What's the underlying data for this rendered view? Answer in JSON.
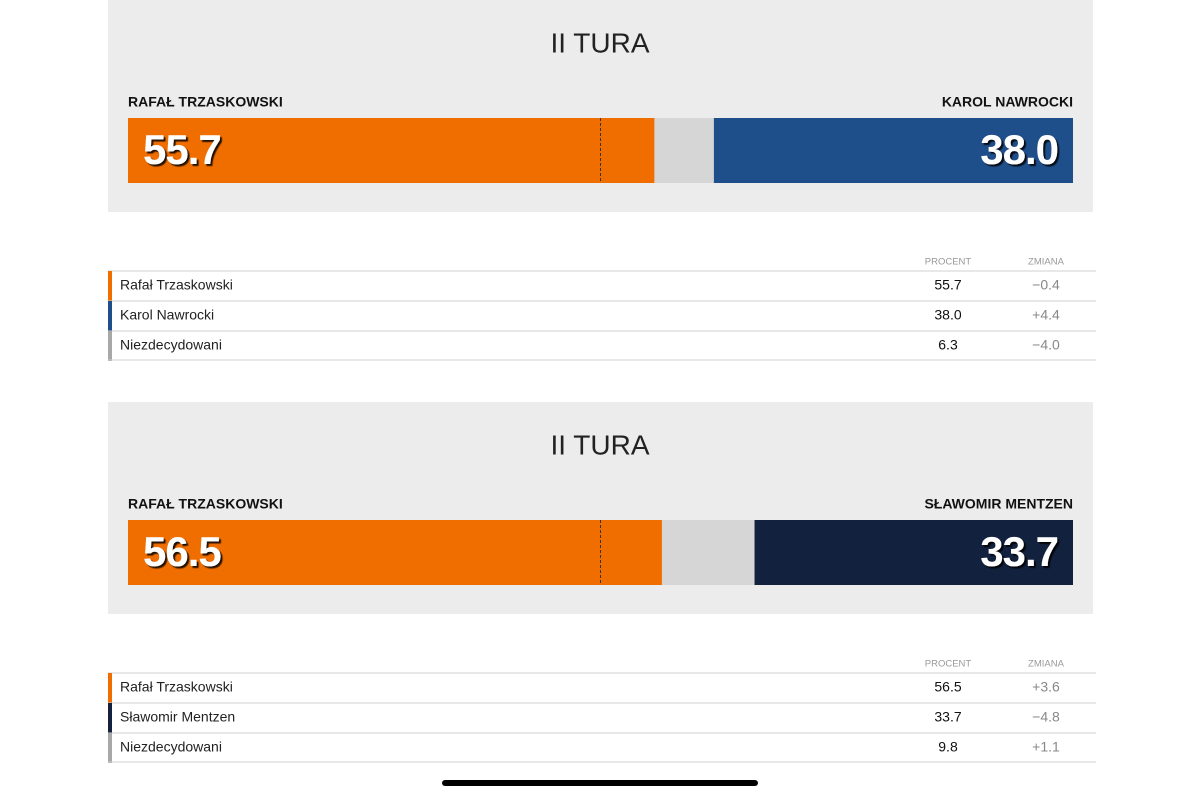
{
  "chart_data": [
    {
      "type": "split-bar",
      "title": "II TURA",
      "xlim": [
        0,
        100
      ],
      "reference_line": 50,
      "series": [
        {
          "name": "RAFAŁ TRZASKOWSKI",
          "color": "#f06e00",
          "values": [
            55.7
          ],
          "value_labels": [
            "55.7"
          ]
        },
        {
          "name": "KAROL NAWROCKI",
          "color": "#1f4f8b",
          "values": [
            38.0
          ],
          "value_labels": [
            "38.0"
          ]
        }
      ],
      "table": {
        "headers": [
          "PROCENT",
          "ZMIANA"
        ],
        "row_colors": [
          "#f06e00",
          "#1f4f8b",
          "#a8a8a8"
        ],
        "rows": [
          [
            "Rafał Trzaskowski",
            "55.7",
            "−0.4"
          ],
          [
            "Karol Nawrocki",
            "38.0",
            "+4.4"
          ],
          [
            "Niezdecydowani",
            "6.3",
            "−4.0"
          ]
        ]
      }
    },
    {
      "type": "split-bar",
      "title": "II TURA",
      "xlim": [
        0,
        100
      ],
      "reference_line": 50,
      "series": [
        {
          "name": "RAFAŁ TRZASKOWSKI",
          "color": "#f06e00",
          "values": [
            56.5
          ],
          "value_labels": [
            "56.5"
          ]
        },
        {
          "name": "SŁAWOMIR MENTZEN",
          "color": "#12213d",
          "values": [
            33.7
          ],
          "value_labels": [
            "33.7"
          ]
        }
      ],
      "table": {
        "headers": [
          "PROCENT",
          "ZMIANA"
        ],
        "row_colors": [
          "#f06e00",
          "#12213d",
          "#a8a8a8"
        ],
        "rows": [
          [
            "Rafał Trzaskowski",
            "56.5",
            "+3.6"
          ],
          [
            "Sławomir Mentzen",
            "33.7",
            "−4.8"
          ],
          [
            "Niezdecydowani",
            "9.8",
            "+1.1"
          ]
        ]
      }
    }
  ]
}
